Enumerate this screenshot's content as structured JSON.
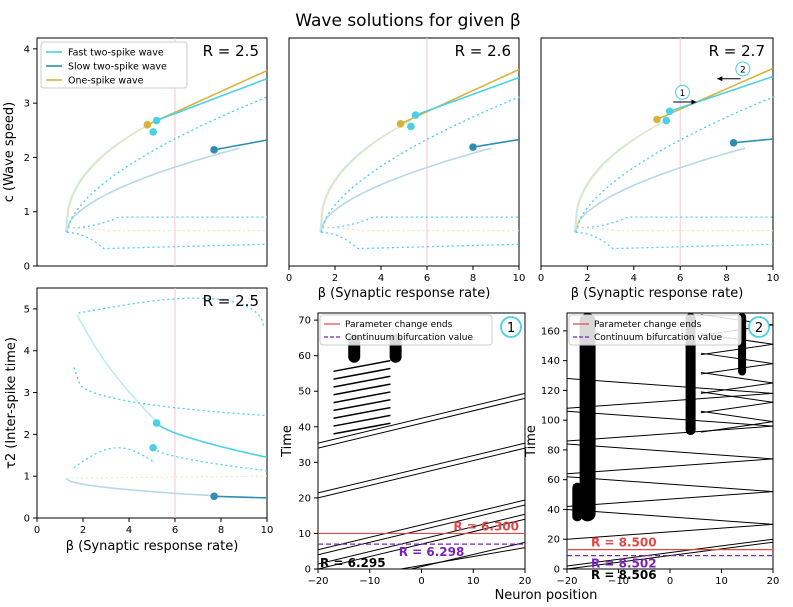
{
  "figure": {
    "title": "Wave solutions for given β",
    "shared_xlabel_bottom": "Neuron position"
  },
  "colors": {
    "fast": "#4cd0e8",
    "fast_light": "#bfeaf2",
    "slow": "#2f8eb0",
    "slow_light": "#b9d8e4",
    "one": "#d7b43a",
    "one_light": "#f1e4b8",
    "param_line": "#e04848",
    "bif_line": "#7a22b8",
    "vline": "#f2c8d0",
    "black": "#000000"
  },
  "chart_data": [
    {
      "id": "c-r25",
      "type": "line",
      "annotation": "R = 2.5",
      "ylabel": "c (Wave speed)",
      "xlabel": "",
      "xlim": [
        0,
        10
      ],
      "ylim": [
        0,
        4.2
      ],
      "xticks": [],
      "yticks": [
        0,
        1,
        2,
        3,
        4
      ],
      "vline_x": 6,
      "legend": [
        "Fast two-spike wave",
        "Slow two-spike wave",
        "One-spike wave"
      ],
      "legend_position": "top-left",
      "points": [
        {
          "series": "one",
          "x": 4.8,
          "y": 2.6
        },
        {
          "series": "fast",
          "x": 5.2,
          "y": 2.68
        },
        {
          "series": "fast",
          "x": 5.05,
          "y": 2.47
        },
        {
          "series": "slow",
          "x": 7.7,
          "y": 2.14
        }
      ]
    },
    {
      "id": "c-r26",
      "type": "line",
      "annotation": "R = 2.6",
      "ylabel": "",
      "xlabel": "β (Synaptic response rate)",
      "xlim": [
        0,
        10
      ],
      "ylim": [
        0,
        4.2
      ],
      "xticks": [
        0,
        2,
        4,
        6,
        8,
        10
      ],
      "yticks": [],
      "vline_x": 6,
      "points": [
        {
          "series": "one",
          "x": 4.85,
          "y": 2.62
        },
        {
          "series": "fast",
          "x": 5.5,
          "y": 2.78
        },
        {
          "series": "fast",
          "x": 5.3,
          "y": 2.57
        },
        {
          "series": "slow",
          "x": 8.0,
          "y": 2.19
        }
      ]
    },
    {
      "id": "c-r27",
      "type": "line",
      "annotation": "R = 2.7",
      "ylabel": "",
      "xlabel": "β (Synaptic response rate)",
      "xlim": [
        0,
        10
      ],
      "ylim": [
        0,
        4.2
      ],
      "xticks": [
        0,
        2,
        4,
        6,
        8,
        10
      ],
      "yticks": [],
      "vline_x": 6,
      "markers": [
        "1",
        "2"
      ],
      "points": [
        {
          "series": "one",
          "x": 5.0,
          "y": 2.7
        },
        {
          "series": "fast",
          "x": 5.55,
          "y": 2.85
        },
        {
          "series": "fast",
          "x": 5.4,
          "y": 2.68
        },
        {
          "series": "slow",
          "x": 8.3,
          "y": 2.27
        }
      ]
    },
    {
      "id": "tau-r25",
      "type": "line",
      "annotation": "R = 2.5",
      "ylabel": "τ2 (Inter-spike time)",
      "xlabel": "β (Synaptic response rate)",
      "xlim": [
        0,
        10
      ],
      "ylim": [
        0,
        5.5
      ],
      "xticks": [
        0,
        2,
        4,
        6,
        8,
        10
      ],
      "yticks": [
        0,
        1,
        2,
        3,
        4,
        5
      ],
      "vline_x": 6,
      "points": [
        {
          "series": "fast",
          "x": 5.2,
          "y": 2.27
        },
        {
          "series": "fast",
          "x": 5.05,
          "y": 1.68
        },
        {
          "series": "slow",
          "x": 7.7,
          "y": 0.52
        }
      ]
    },
    {
      "id": "sim-1",
      "type": "line",
      "marker": "1",
      "ylabel": "Time",
      "xlabel": "",
      "xlim": [
        -20,
        20
      ],
      "ylim": [
        0,
        72
      ],
      "xticks": [
        -20,
        -10,
        0,
        10,
        20
      ],
      "yticks": [
        0,
        10,
        20,
        30,
        40,
        50,
        60,
        70
      ],
      "legend": [
        "Parameter change ends",
        "Continuum bifurcation value"
      ],
      "legend_position": "top-left",
      "param_change_y": 10,
      "bifurcation_y": 7,
      "labels": {
        "red": "R = 6.300",
        "purple": "R = 6.298",
        "black": "R = 6.295"
      }
    },
    {
      "id": "sim-2",
      "type": "line",
      "marker": "2",
      "ylabel": "Time",
      "xlabel": "",
      "xlim": [
        -20,
        20
      ],
      "ylim": [
        0,
        172
      ],
      "xticks": [
        -20,
        -10,
        0,
        10,
        20
      ],
      "yticks": [
        0,
        20,
        40,
        60,
        80,
        100,
        120,
        140,
        160
      ],
      "legend": [
        "Parameter change ends",
        "Continuum bifurcation value"
      ],
      "legend_position": "top-left",
      "param_change_y": 13,
      "bifurcation_y": 9,
      "labels": {
        "red": "R = 8.500",
        "purple": "R = 8.502",
        "black": "R = 8.506"
      }
    }
  ]
}
